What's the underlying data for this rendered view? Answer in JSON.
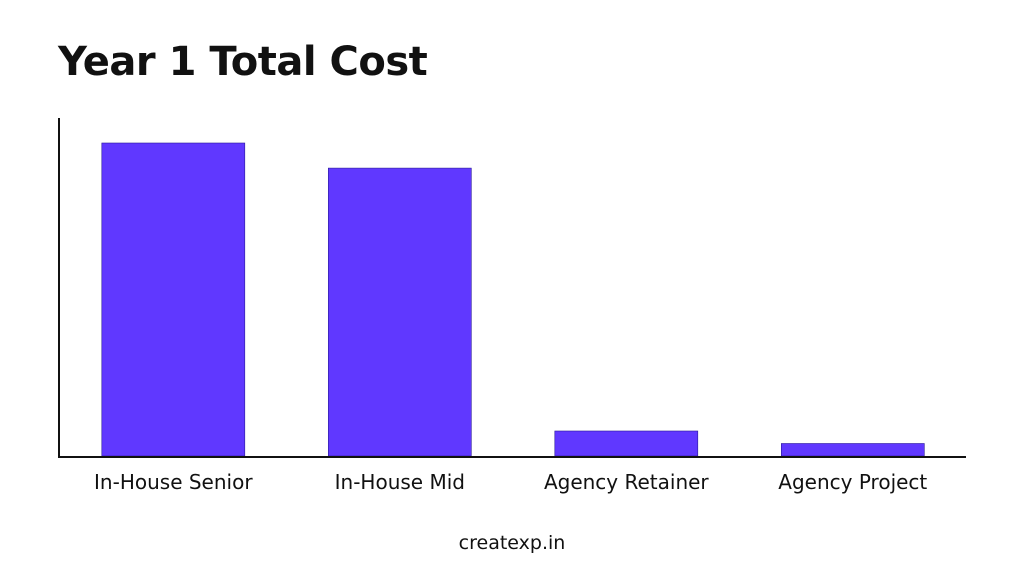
{
  "chart_data": {
    "type": "bar",
    "title": "Year 1 Total Cost",
    "categories": [
      "In-House Senior",
      "In-House Mid",
      "Agency Retainer",
      "Agency Project"
    ],
    "values": [
      100,
      92,
      8,
      4
    ],
    "xlabel": "",
    "ylabel": "",
    "ylim": [
      0,
      108
    ],
    "grid": false,
    "bar_color": "#6038ff",
    "axis_color": "#111111"
  },
  "footer": {
    "text": "createxp.in"
  }
}
